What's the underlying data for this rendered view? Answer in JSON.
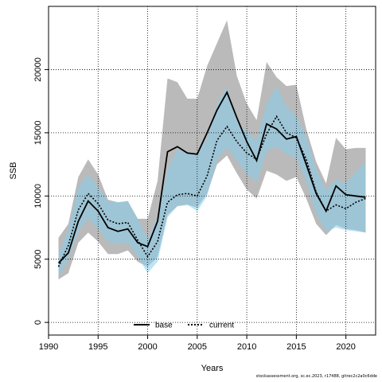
{
  "chart_data": {
    "type": "line",
    "xlabel": "Years",
    "ylabel": "SSB",
    "xlim": [
      1990,
      2023
    ],
    "ylim": [
      -1000,
      25000
    ],
    "xticks": [
      1990,
      1995,
      2000,
      2005,
      2010,
      2015,
      2020
    ],
    "yticks": [
      0,
      5000,
      10000,
      15000,
      20000
    ],
    "grid": true,
    "legend_position": "bottom-center",
    "x": [
      1991,
      1992,
      1993,
      1994,
      1995,
      1996,
      1997,
      1998,
      1999,
      2000,
      2001,
      2002,
      2003,
      2004,
      2005,
      2006,
      2007,
      2008,
      2009,
      2010,
      2011,
      2012,
      2013,
      2014,
      2015,
      2016,
      2017,
      2018,
      2019,
      2020,
      2021,
      2022
    ],
    "series": [
      {
        "name": "base",
        "color": "#000000",
        "band_color": "#a9a9a9",
        "line_style": "solid",
        "values": [
          4700,
          5500,
          8000,
          9600,
          8800,
          7500,
          7200,
          7400,
          6300,
          6000,
          8000,
          13500,
          13900,
          13400,
          13300,
          15000,
          16800,
          18200,
          16200,
          14300,
          12800,
          15700,
          15300,
          14500,
          14700,
          12500,
          10200,
          8800,
          10800,
          10100,
          10000,
          9900
        ],
        "lower": [
          3400,
          3900,
          6300,
          7100,
          6400,
          5400,
          5400,
          5700,
          4800,
          4400,
          5200,
          8500,
          9200,
          9300,
          9100,
          10200,
          12500,
          13200,
          11800,
          10500,
          9800,
          12000,
          11700,
          11200,
          11500,
          9800,
          7800,
          6900,
          7700,
          7400,
          7300,
          7100
        ],
        "upper": [
          6700,
          7800,
          11500,
          12900,
          11700,
          9700,
          9500,
          9600,
          8200,
          8200,
          11200,
          19300,
          19000,
          17700,
          17700,
          20300,
          22100,
          23900,
          19500,
          17300,
          16000,
          20600,
          19400,
          18700,
          18800,
          15300,
          12700,
          11000,
          14600,
          13700,
          13800,
          13800
        ]
      },
      {
        "name": "current",
        "color": "#000000",
        "band_color": "#87ceeb",
        "line_style": "dotted",
        "values": [
          4400,
          6100,
          8900,
          10200,
          9400,
          8100,
          7800,
          7900,
          6500,
          5200,
          6400,
          9500,
          10100,
          10200,
          10000,
          11600,
          14400,
          15500,
          14300,
          13400,
          12900,
          14900,
          16300,
          15000,
          14600,
          12900,
          10300,
          8800,
          9300,
          9000,
          9500,
          9800
        ],
        "lower": [
          3600,
          5000,
          7200,
          8200,
          7400,
          6400,
          6200,
          6300,
          5200,
          3900,
          4800,
          8300,
          9200,
          9300,
          8800,
          10000,
          12900,
          13800,
          12800,
          11800,
          11100,
          13500,
          13900,
          13300,
          13000,
          11100,
          8600,
          7200,
          7500,
          7300,
          7200,
          7100
        ],
        "upper": [
          5400,
          7400,
          10700,
          11700,
          10700,
          9600,
          9500,
          9600,
          8200,
          6600,
          8300,
          12100,
          13700,
          13400,
          13400,
          14600,
          17300,
          18600,
          16000,
          15100,
          14400,
          17300,
          18700,
          17100,
          16300,
          14700,
          12100,
          10500,
          11300,
          11000,
          11900,
          12700
        ]
      }
    ]
  },
  "footer_text": "stockassessment.org, sc.ec.2023, r17488, gitrec2c2a0c6dde"
}
